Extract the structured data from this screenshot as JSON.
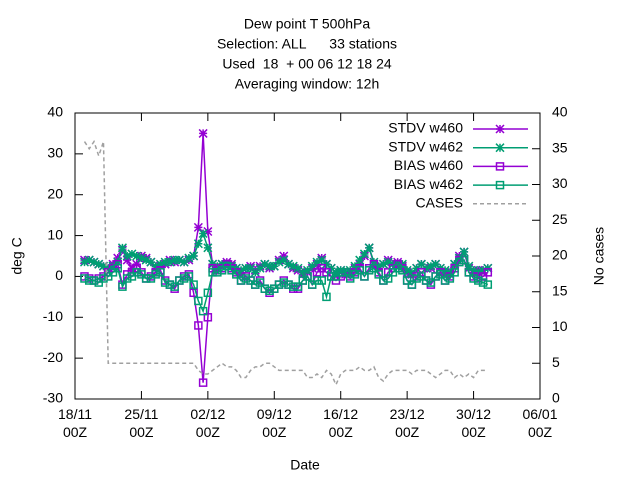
{
  "chart_data": {
    "type": "line",
    "title": [
      "Dew point T 500hPa",
      "Selection: ALL      33 stations",
      "Used  18  + 00 06 12 18 24",
      "Averaging window: 12h"
    ],
    "xlabel": "Date",
    "ylabel": "deg C",
    "y2label": "No cases",
    "x": [
      1,
      1.5,
      2,
      2.5,
      3,
      3.5,
      4,
      4.5,
      5,
      5.5,
      6,
      6.5,
      7,
      7.5,
      8,
      8.5,
      9,
      9.5,
      10,
      10.5,
      11,
      11.5,
      12,
      12.5,
      13,
      13.5,
      14,
      14.5,
      15,
      15.5,
      16,
      16.5,
      17,
      17.5,
      18,
      18.5,
      19,
      19.5,
      20,
      20.5,
      21,
      21.5,
      22,
      22.5,
      23,
      23.5,
      24,
      24.5,
      25,
      25.5,
      26,
      26.5,
      27,
      27.5,
      28,
      28.5,
      29,
      29.5,
      30,
      30.5,
      31,
      31.5,
      32,
      32.5,
      33,
      33.5,
      34,
      34.5,
      35,
      35.5,
      36,
      36.5,
      37,
      37.5,
      38,
      38.5,
      39,
      39.5,
      40,
      40.5,
      41,
      41.5,
      42,
      42.5,
      43,
      43.5
    ],
    "xlim": [
      0,
      49
    ],
    "xticks": [
      {
        "value": 0,
        "label": "18/11\n00Z"
      },
      {
        "value": 7,
        "label": "25/11\n00Z"
      },
      {
        "value": 14,
        "label": "02/12\n00Z"
      },
      {
        "value": 21,
        "label": "09/12\n00Z"
      },
      {
        "value": 28,
        "label": "16/12\n00Z"
      },
      {
        "value": 35,
        "label": "23/12\n00Z"
      },
      {
        "value": 42,
        "label": "30/12\n00Z"
      },
      {
        "value": 49,
        "label": "06/01\n00Z"
      }
    ],
    "ylim": [
      -30,
      40
    ],
    "yticks": [
      -30,
      -20,
      -10,
      0,
      10,
      20,
      30,
      40
    ],
    "y2lim": [
      0,
      40
    ],
    "y2ticks": [
      0,
      5,
      10,
      15,
      20,
      25,
      30,
      35,
      40
    ],
    "legend": "top-right",
    "series": [
      {
        "name": "STDV w460",
        "color": "#9400d3",
        "marker": "star",
        "values": [
          4,
          4,
          3.5,
          3,
          2.5,
          2,
          3,
          4.5,
          6.5,
          4,
          2,
          3,
          5,
          4.5,
          3.5,
          2,
          2.5,
          3,
          4,
          3.5,
          4,
          3.5,
          4,
          5,
          12,
          35,
          11,
          3,
          2,
          3,
          3.5,
          3,
          2,
          1,
          2,
          2.5,
          1.5,
          2.5,
          3,
          2,
          2.5,
          4,
          5,
          3,
          2,
          1.5,
          0.5,
          1,
          2,
          3,
          4.5,
          3,
          2,
          1,
          1.5,
          0.5,
          1,
          2,
          3,
          5,
          7,
          3,
          2,
          3,
          4,
          3,
          3.5,
          2.5,
          1,
          0.5,
          2,
          3,
          2,
          2,
          3,
          2,
          1,
          0.5,
          3,
          5,
          6,
          2,
          1,
          1.5,
          1.5,
          2
        ]
      },
      {
        "name": "STDV w462",
        "color": "#009e73",
        "marker": "star",
        "values": [
          3.5,
          4,
          3.5,
          3,
          2.5,
          2,
          2.5,
          3.5,
          7,
          5,
          5.5,
          5,
          4.5,
          4,
          3.5,
          2.5,
          3,
          3.5,
          3.5,
          4,
          4,
          3.5,
          4.5,
          5,
          8,
          10.5,
          7,
          3,
          2.5,
          3,
          3,
          2.5,
          2,
          1.5,
          2,
          2,
          1,
          2,
          3,
          2.5,
          2.5,
          3.5,
          4,
          3,
          2.5,
          2,
          1,
          1.5,
          2.5,
          3.5,
          4,
          3,
          2,
          1,
          1.5,
          1,
          1.5,
          2.5,
          4,
          5.5,
          7,
          3.5,
          2.5,
          3,
          3.5,
          3,
          3,
          3,
          1.5,
          1,
          2,
          3,
          2,
          2.5,
          3,
          2,
          1.5,
          1,
          3,
          4.5,
          6,
          2.5,
          1.5,
          1,
          1.5,
          2
        ]
      },
      {
        "name": "BIAS w460",
        "color": "#9400d3",
        "marker": "square",
        "values": [
          0,
          -0.5,
          -1,
          -0.5,
          0,
          1,
          2,
          3,
          -2,
          0.5,
          1,
          2,
          1,
          -0.5,
          0,
          1,
          1.5,
          -1,
          -2,
          -3,
          -1,
          0,
          0.5,
          -4,
          -12,
          -26,
          -10,
          2,
          1.5,
          2,
          3,
          2,
          1,
          -1,
          0,
          -1,
          -2,
          -1,
          -3,
          -4,
          -3,
          -2,
          -1,
          -2,
          -3,
          -3,
          -1,
          0,
          -2,
          1,
          2,
          1,
          0,
          -1,
          0,
          1,
          0,
          1,
          2,
          0,
          2,
          3,
          1,
          -1,
          1,
          2,
          3,
          2,
          -1,
          -2,
          0,
          1,
          -1,
          -2,
          0,
          1,
          -1,
          0,
          2,
          4,
          4,
          1,
          0,
          -0.5,
          0,
          1
        ]
      },
      {
        "name": "BIAS w462",
        "color": "#009e73",
        "marker": "square",
        "values": [
          -0.5,
          -1,
          -1,
          -1.5,
          -0.5,
          0,
          1,
          2,
          -2.5,
          -0.5,
          0,
          1,
          0.5,
          -0.5,
          -0.5,
          0.5,
          1,
          -1.5,
          -2,
          -2.5,
          -1,
          -0.5,
          0,
          -2,
          -6,
          -8.5,
          -4,
          1,
          1,
          1.5,
          2.5,
          1.5,
          0.5,
          -1,
          -0.5,
          -1,
          -2,
          -1.5,
          -3,
          -3.5,
          -3,
          -2,
          -1.5,
          -2,
          -2.5,
          -2.5,
          -1,
          0,
          -2,
          -1,
          -1,
          -5,
          0,
          0,
          1,
          1,
          -0.5,
          0.5,
          1.5,
          0,
          1.5,
          2,
          0.5,
          -1,
          -0.5,
          1,
          2,
          1.5,
          -1,
          -2,
          -0.5,
          0,
          -1,
          -1.5,
          0,
          0.5,
          -1,
          -0.5,
          1,
          3.5,
          4,
          1,
          -0.5,
          -1,
          -1.5,
          -2
        ]
      },
      {
        "name": "CASES",
        "color": "#a0a0a0",
        "marker": "none",
        "style": "dashed",
        "axis": "y2",
        "values": [
          36,
          35,
          36,
          34,
          36,
          5,
          5,
          5,
          5,
          5,
          5,
          5,
          5,
          5,
          5,
          5,
          5,
          5,
          5,
          5,
          5,
          5,
          5,
          5,
          4,
          3.5,
          3.5,
          4,
          4.5,
          5,
          4.5,
          4.5,
          4,
          3,
          3,
          4,
          4.5,
          4.5,
          5,
          5,
          4.5,
          4,
          4,
          4,
          4,
          4,
          4,
          3,
          3,
          3.5,
          3,
          4,
          3.5,
          2,
          3.5,
          4,
          4,
          4,
          4.5,
          4,
          4,
          4.5,
          3,
          2.5,
          3.5,
          4,
          4,
          4,
          4,
          3.5,
          4,
          4,
          4,
          3.5,
          3,
          3.5,
          4,
          4,
          3,
          3.5,
          3,
          3.5,
          3,
          4,
          4,
          4
        ]
      }
    ]
  }
}
